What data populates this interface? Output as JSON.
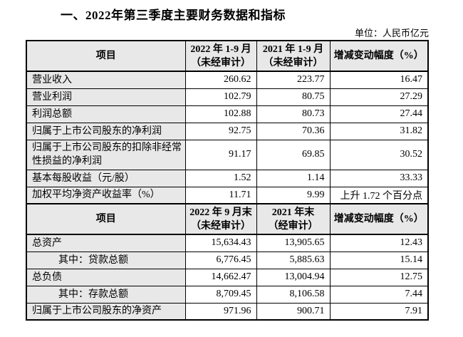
{
  "page": {
    "title": "一、2022年第三季度主要财务数据和指标",
    "unit_label": "单位：人民币亿元"
  },
  "colors": {
    "header_bg": "#e8e8e8",
    "border": "#000000",
    "text": "#000000"
  },
  "table": {
    "sections": [
      {
        "header": {
          "col1": "项目",
          "col2": [
            "2022 年 1-9 月",
            "（未经审计）"
          ],
          "col3": [
            "2021 年 1-9 月",
            "（未经审计）"
          ],
          "col4": [
            "增减变动幅度（%）"
          ]
        },
        "rows": [
          {
            "label": "营业收入",
            "indent": false,
            "tall": false,
            "values": [
              "260.62",
              "223.77",
              "16.47"
            ]
          },
          {
            "label": "营业利润",
            "indent": false,
            "tall": false,
            "values": [
              "102.79",
              "80.75",
              "27.29"
            ]
          },
          {
            "label": "利润总额",
            "indent": false,
            "tall": false,
            "values": [
              "102.88",
              "80.73",
              "27.44"
            ]
          },
          {
            "label": "归属于上市公司股东的净利润",
            "indent": false,
            "tall": false,
            "values": [
              "92.75",
              "70.36",
              "31.82"
            ]
          },
          {
            "label": "归属于上市公司股东的扣除非经常性损益的净利润",
            "indent": false,
            "tall": true,
            "values": [
              "91.17",
              "69.85",
              "30.52"
            ]
          },
          {
            "label": "基本每股收益（元/股）",
            "indent": false,
            "tall": false,
            "values": [
              "1.52",
              "1.14",
              "33.33"
            ]
          },
          {
            "label": "加权平均净资产收益率（%）",
            "indent": false,
            "tall": false,
            "values": [
              "11.71",
              "9.99",
              "上升 1.72 个百分点"
            ]
          }
        ]
      },
      {
        "header": {
          "col1": "项目",
          "col2": [
            "2022 年 9 月末",
            "（未经审计）"
          ],
          "col3": [
            "2021 年末",
            "（经审计）"
          ],
          "col4": [
            "增减变动幅度（%）"
          ]
        },
        "rows": [
          {
            "label": "总资产",
            "indent": false,
            "tall": false,
            "values": [
              "15,634.43",
              "13,905.65",
              "12.43"
            ]
          },
          {
            "label": "其中：贷款总额",
            "indent": true,
            "tall": false,
            "values": [
              "6,776.45",
              "5,885.63",
              "15.14"
            ]
          },
          {
            "label": "总负债",
            "indent": false,
            "tall": false,
            "values": [
              "14,662.47",
              "13,004.94",
              "12.75"
            ]
          },
          {
            "label": "其中：存款总额",
            "indent": true,
            "tall": false,
            "values": [
              "8,709.45",
              "8,106.58",
              "7.44"
            ]
          },
          {
            "label": "归属于上市公司股东的净资产",
            "indent": false,
            "tall": false,
            "values": [
              "971.96",
              "900.71",
              "7.91"
            ]
          }
        ]
      }
    ]
  }
}
